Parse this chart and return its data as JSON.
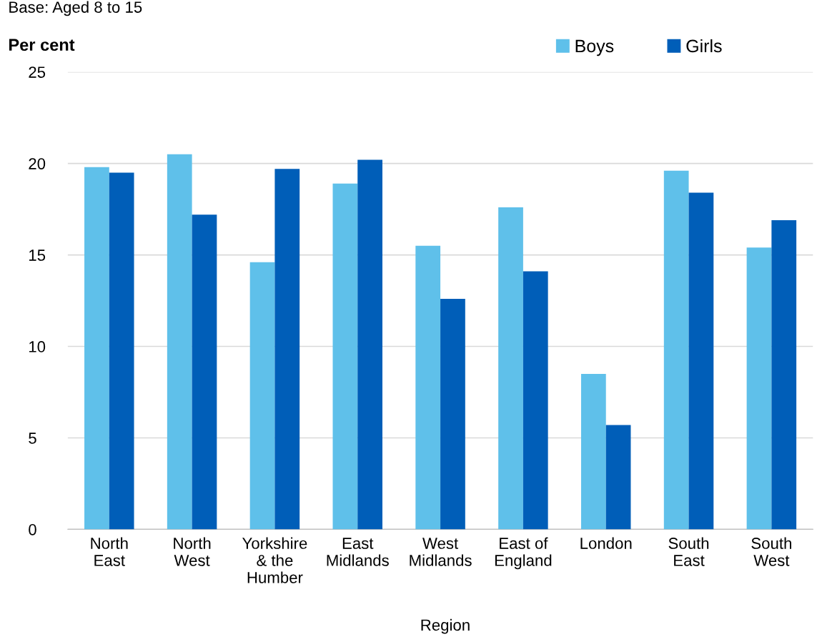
{
  "chart_data": {
    "type": "bar",
    "subtitle": "Base: Aged 8 to 15",
    "ylabel": "Per cent",
    "xlabel": "Region",
    "categories": [
      "North\nEast",
      "North\nWest",
      "Yorkshire\n& the\nHumber",
      "East\nMidlands",
      "West\nMidlands",
      "East of\nEngland",
      "London",
      "South\nEast",
      "South\nWest"
    ],
    "series": [
      {
        "name": "Boys",
        "color": "#5fc0ea",
        "values": [
          19.8,
          20.5,
          14.6,
          18.9,
          15.5,
          17.6,
          8.5,
          19.6,
          15.4
        ]
      },
      {
        "name": "Girls",
        "color": "#005eb8",
        "values": [
          19.5,
          17.2,
          19.7,
          20.2,
          12.6,
          14.1,
          5.7,
          18.4,
          16.9
        ]
      }
    ],
    "ylim": [
      0,
      25
    ],
    "yticks": [
      0,
      5,
      10,
      15,
      20,
      25
    ],
    "grid": "y",
    "legend": "top right"
  }
}
